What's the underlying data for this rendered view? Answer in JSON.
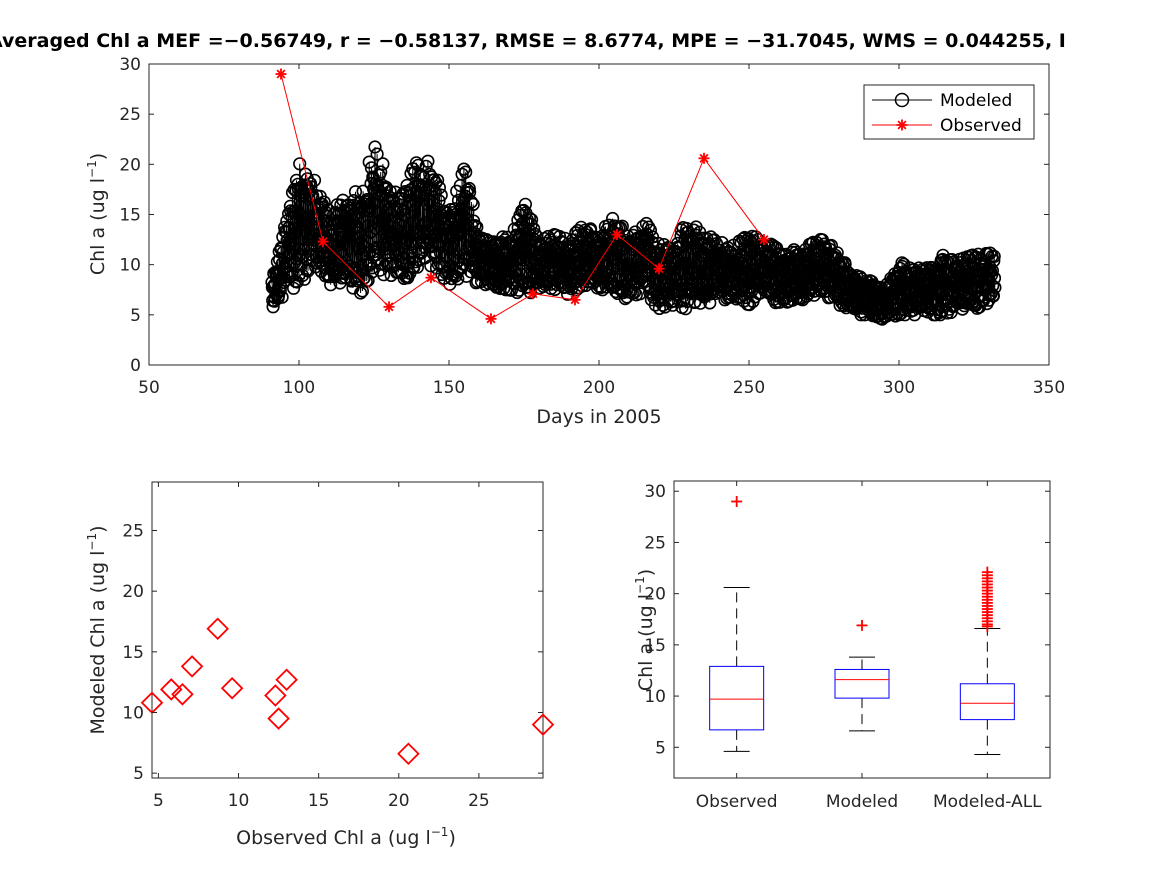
{
  "title": "Averaged Chl a    MEF =−0.56749, r = −0.58137, RMSE = 8.6774, MPE = −31.7045, WMS = 0.044255, I",
  "colors": {
    "modeled": "#000000",
    "observed": "#ff0000",
    "box": "#0000ff",
    "median": "#ff0000",
    "axis": "#262626"
  },
  "chart_data": [
    {
      "type": "line",
      "xlabel": "Days in 2005",
      "ylabel_main": "Chl a (ug l",
      "ylabel_sup": "−1",
      "ylabel_tail": ")",
      "xlim": [
        50,
        350
      ],
      "ylim": [
        0,
        30
      ],
      "xticks": [
        "50",
        "100",
        "150",
        "200",
        "250",
        "300",
        "350"
      ],
      "yticks": [
        "0",
        "5",
        "10",
        "15",
        "20",
        "25",
        "30"
      ],
      "legend_position": "top-right",
      "series": [
        {
          "name": "Modeled",
          "marker": "circle",
          "envelope_day": [
            91,
            95,
            100,
            105,
            110,
            115,
            120,
            126,
            130,
            135,
            140,
            145,
            150,
            155,
            160,
            165,
            170,
            175,
            180,
            185,
            190,
            195,
            200,
            205,
            210,
            215,
            220,
            225,
            230,
            235,
            240,
            245,
            250,
            255,
            260,
            265,
            270,
            275,
            280,
            285,
            290,
            295,
            300,
            305,
            310,
            315,
            320,
            325,
            332
          ],
          "envelope_low": [
            5.5,
            7,
            8,
            9.5,
            8,
            7.5,
            7,
            9,
            9,
            8.5,
            9,
            10,
            8,
            9,
            8,
            7.5,
            7.5,
            7,
            7.5,
            7.5,
            7,
            8,
            7.5,
            7.5,
            6,
            7.5,
            5.5,
            6,
            5.5,
            6,
            6.5,
            6.5,
            6,
            7,
            6,
            6.5,
            6.5,
            7,
            6,
            5,
            5,
            4.5,
            5,
            5,
            5,
            5,
            5.5,
            5.5,
            6.5
          ],
          "envelope_high": [
            8.5,
            14,
            20.5,
            18.5,
            15.5,
            16.5,
            17.5,
            22.3,
            18,
            17,
            21.5,
            19.5,
            15,
            20.5,
            13.5,
            12.5,
            13,
            16.5,
            12.5,
            13,
            12.5,
            14,
            13,
            15,
            13,
            14.5,
            12,
            12,
            15,
            13,
            12.5,
            12,
            13,
            12.5,
            11.5,
            11.5,
            12,
            12.8,
            11,
            9,
            8.5,
            7.5,
            10.5,
            9.5,
            10,
            11,
            10.5,
            11,
            11.2
          ]
        },
        {
          "name": "Observed",
          "marker": "asterisk",
          "x": [
            94,
            108,
            130,
            144,
            164,
            178,
            192,
            206,
            220,
            235,
            255
          ],
          "y": [
            29.0,
            12.3,
            5.8,
            8.7,
            4.6,
            7.1,
            6.5,
            13.0,
            9.6,
            20.6,
            12.5
          ]
        }
      ]
    },
    {
      "type": "scatter",
      "xlabel_main": "Observed Chl a (ug l",
      "xlabel_sup": "−1",
      "xlabel_tail": ")",
      "ylabel_main": "Modeled Chl a (ug l",
      "ylabel_sup": "−1",
      "ylabel_tail": ")",
      "xlim": [
        4.6,
        29
      ],
      "ylim": [
        4.6,
        29
      ],
      "xticks": [
        "5",
        "10",
        "15",
        "20",
        "25"
      ],
      "yticks": [
        "5",
        "10",
        "15",
        "20",
        "25"
      ],
      "marker": "diamond",
      "x": [
        4.6,
        5.8,
        6.5,
        7.1,
        8.7,
        9.6,
        12.3,
        12.5,
        13.0,
        20.6,
        29.0
      ],
      "y": [
        10.8,
        11.9,
        11.5,
        13.8,
        16.9,
        12.0,
        11.4,
        9.5,
        12.7,
        6.6,
        9.0
      ]
    },
    {
      "type": "box",
      "ylabel_main": "Chl a (ug l",
      "ylabel_sup": "−1",
      "ylabel_tail": ")",
      "ylim": [
        2,
        31
      ],
      "yticks": [
        "5",
        "10",
        "15",
        "20",
        "25",
        "30"
      ],
      "categories": [
        "Observed",
        "Modeled",
        "Modeled-ALL"
      ],
      "boxes": [
        {
          "whisker_low": 4.6,
          "q1": 6.7,
          "median": 9.7,
          "q3": 12.9,
          "whisker_high": 20.6,
          "outliers": [
            29.0
          ]
        },
        {
          "whisker_low": 6.6,
          "q1": 9.8,
          "median": 11.6,
          "q3": 12.6,
          "whisker_high": 13.8,
          "outliers": [
            16.9
          ]
        },
        {
          "whisker_low": 4.3,
          "q1": 7.7,
          "median": 9.3,
          "q3": 11.2,
          "whisker_high": 16.6,
          "outliers": [
            16.8,
            17.0,
            17.3,
            17.6,
            17.9,
            18.2,
            18.5,
            18.8,
            19.1,
            19.4,
            19.7,
            20.0,
            20.3,
            20.6,
            20.9,
            21.2,
            21.5,
            21.8,
            22.1
          ]
        }
      ]
    }
  ]
}
